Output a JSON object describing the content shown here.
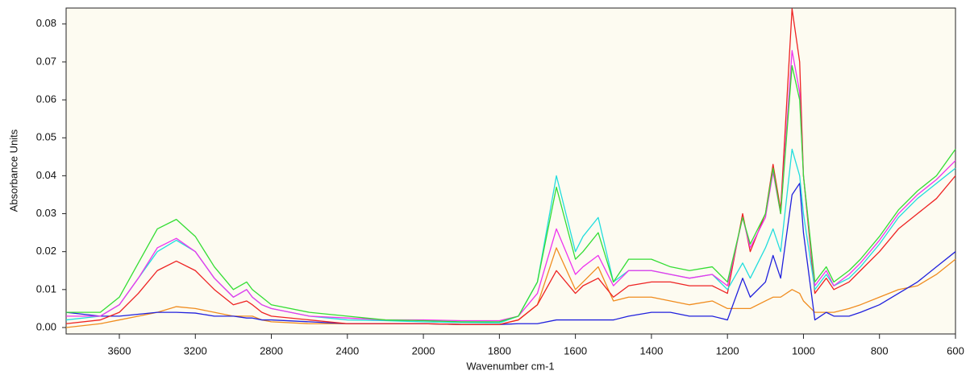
{
  "chart_data": {
    "type": "line",
    "x_label": "Wavenumber cm-1",
    "y_label": "Absorbance Units",
    "x": [
      3880,
      3700,
      3600,
      3500,
      3400,
      3300,
      3200,
      3100,
      3000,
      2930,
      2900,
      2850,
      2800,
      2600,
      2400,
      2200,
      2000,
      1900,
      1800,
      1750,
      1700,
      1650,
      1600,
      1580,
      1540,
      1500,
      1460,
      1400,
      1350,
      1300,
      1240,
      1200,
      1160,
      1140,
      1100,
      1080,
      1060,
      1030,
      1010,
      1000,
      970,
      940,
      920,
      880,
      850,
      800,
      750,
      700,
      650,
      600
    ],
    "series": [
      {
        "color": "#f08c1e",
        "values": [
          0.0,
          0.001,
          0.002,
          0.003,
          0.004,
          0.0055,
          0.005,
          0.004,
          0.003,
          0.003,
          0.003,
          0.002,
          0.0015,
          0.001,
          0.001,
          0.001,
          0.001,
          0.0008,
          0.0008,
          0.002,
          0.006,
          0.021,
          0.01,
          0.012,
          0.016,
          0.007,
          0.008,
          0.008,
          0.007,
          0.006,
          0.007,
          0.005,
          0.005,
          0.005,
          0.007,
          0.008,
          0.008,
          0.01,
          0.009,
          0.007,
          0.004,
          0.004,
          0.004,
          0.005,
          0.006,
          0.008,
          0.01,
          0.011,
          0.014,
          0.018
        ]
      },
      {
        "color": "#2020dd",
        "values": [
          0.004,
          0.003,
          0.003,
          0.0035,
          0.004,
          0.004,
          0.0038,
          0.003,
          0.003,
          0.0025,
          0.0025,
          0.002,
          0.002,
          0.0015,
          0.001,
          0.001,
          0.001,
          0.0008,
          0.0008,
          0.001,
          0.001,
          0.002,
          0.002,
          0.002,
          0.002,
          0.002,
          0.003,
          0.004,
          0.004,
          0.003,
          0.003,
          0.002,
          0.013,
          0.008,
          0.012,
          0.019,
          0.013,
          0.035,
          0.038,
          0.025,
          0.002,
          0.004,
          0.003,
          0.003,
          0.004,
          0.006,
          0.009,
          0.012,
          0.016,
          0.02
        ]
      },
      {
        "color": "#ee2222",
        "values": [
          0.001,
          0.002,
          0.004,
          0.009,
          0.015,
          0.0175,
          0.015,
          0.01,
          0.006,
          0.007,
          0.006,
          0.004,
          0.003,
          0.002,
          0.001,
          0.001,
          0.001,
          0.0008,
          0.0008,
          0.002,
          0.006,
          0.015,
          0.009,
          0.011,
          0.013,
          0.008,
          0.011,
          0.012,
          0.012,
          0.011,
          0.011,
          0.009,
          0.03,
          0.02,
          0.03,
          0.043,
          0.031,
          0.084,
          0.07,
          0.04,
          0.009,
          0.013,
          0.01,
          0.012,
          0.015,
          0.02,
          0.026,
          0.03,
          0.034,
          0.04
        ]
      },
      {
        "color": "#22dddd",
        "values": [
          0.002,
          0.003,
          0.006,
          0.013,
          0.02,
          0.023,
          0.02,
          0.013,
          0.008,
          0.01,
          0.008,
          0.006,
          0.005,
          0.003,
          0.002,
          0.0018,
          0.0015,
          0.0013,
          0.0012,
          0.003,
          0.012,
          0.04,
          0.02,
          0.024,
          0.029,
          0.012,
          0.015,
          0.015,
          0.014,
          0.013,
          0.014,
          0.01,
          0.017,
          0.013,
          0.021,
          0.026,
          0.02,
          0.047,
          0.04,
          0.03,
          0.01,
          0.014,
          0.011,
          0.013,
          0.016,
          0.022,
          0.029,
          0.034,
          0.038,
          0.042
        ]
      },
      {
        "color": "#ee33ee",
        "values": [
          0.003,
          0.003,
          0.006,
          0.013,
          0.021,
          0.0235,
          0.02,
          0.013,
          0.008,
          0.01,
          0.008,
          0.006,
          0.005,
          0.003,
          0.0025,
          0.002,
          0.002,
          0.0018,
          0.0018,
          0.003,
          0.009,
          0.026,
          0.014,
          0.016,
          0.019,
          0.011,
          0.015,
          0.015,
          0.014,
          0.013,
          0.014,
          0.011,
          0.029,
          0.021,
          0.029,
          0.041,
          0.03,
          0.073,
          0.062,
          0.04,
          0.011,
          0.015,
          0.011,
          0.014,
          0.017,
          0.023,
          0.03,
          0.035,
          0.039,
          0.044
        ]
      },
      {
        "color": "#33dd33",
        "values": [
          0.004,
          0.004,
          0.008,
          0.017,
          0.026,
          0.0285,
          0.024,
          0.016,
          0.01,
          0.012,
          0.01,
          0.008,
          0.006,
          0.004,
          0.003,
          0.002,
          0.0018,
          0.0015,
          0.0015,
          0.003,
          0.012,
          0.037,
          0.018,
          0.02,
          0.025,
          0.012,
          0.018,
          0.018,
          0.016,
          0.015,
          0.016,
          0.012,
          0.029,
          0.022,
          0.03,
          0.042,
          0.03,
          0.069,
          0.06,
          0.04,
          0.012,
          0.016,
          0.012,
          0.015,
          0.018,
          0.024,
          0.031,
          0.036,
          0.04,
          0.047
        ]
      }
    ],
    "xlim": [
      3880,
      600
    ],
    "xticks": [
      3600,
      3200,
      2800,
      2400,
      2000,
      1800,
      1600,
      1400,
      1200,
      1000,
      800,
      600
    ],
    "ylim": [
      -0.0017,
      0.0842
    ],
    "yticks": [
      {
        "value": 0,
        "label": "0.00"
      },
      {
        "value": 0.01,
        "label": "0.01"
      },
      {
        "value": 0.02,
        "label": "0.02"
      },
      {
        "value": 0.03,
        "label": "0.03"
      },
      {
        "value": 0.04,
        "label": "0.04"
      },
      {
        "value": 0.05,
        "label": "0.05"
      },
      {
        "value": 0.06,
        "label": "0.06"
      },
      {
        "value": 0.07,
        "label": "0.07"
      },
      {
        "value": 0.08,
        "label": "0.08"
      }
    ],
    "grid": false
  }
}
